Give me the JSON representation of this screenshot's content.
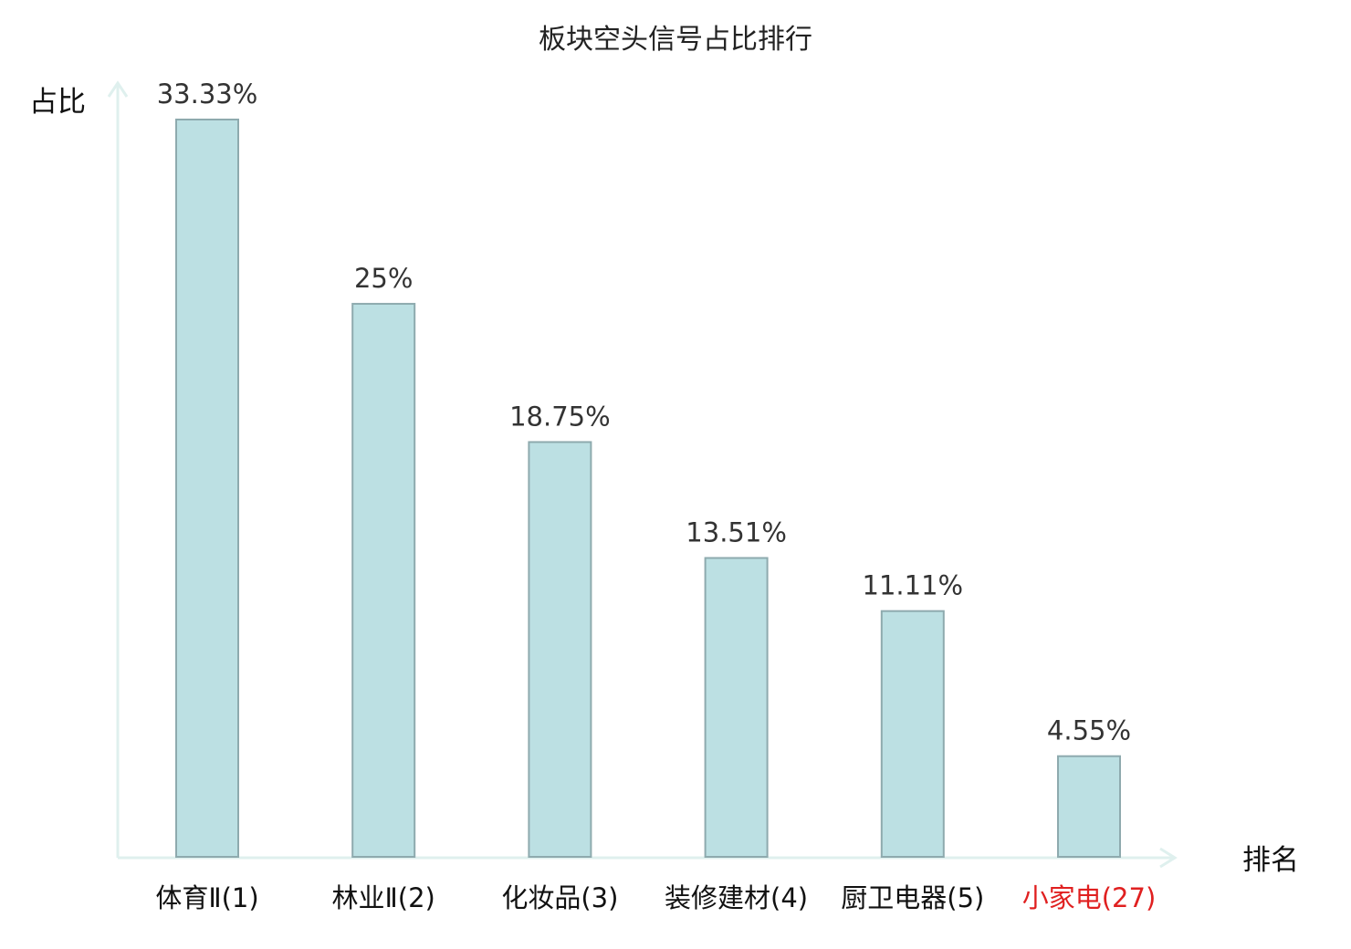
{
  "chart_data": {
    "type": "bar",
    "title": "板块空头信号占比排行",
    "ylabel": "占比",
    "xlabel": "排名",
    "categories": [
      "体育Ⅱ(1)",
      "林业Ⅱ(2)",
      "化妆品(3)",
      "装修建材(4)",
      "厨卫电器(5)",
      "小家电(27)"
    ],
    "values": [
      33.33,
      25,
      18.75,
      13.51,
      11.11,
      4.55
    ],
    "value_labels": [
      "33.33%",
      "25%",
      "18.75%",
      "13.51%",
      "11.11%",
      "4.55%"
    ],
    "highlight_index": 5,
    "ylim": [
      0,
      33.33
    ],
    "grid": false,
    "legend": "none"
  },
  "colors": {
    "bar_fill": "#bce0e3",
    "bar_stroke": "#8eaaae",
    "axis": "#dff0ee",
    "highlight_text": "#e02020",
    "text": "#111111"
  }
}
